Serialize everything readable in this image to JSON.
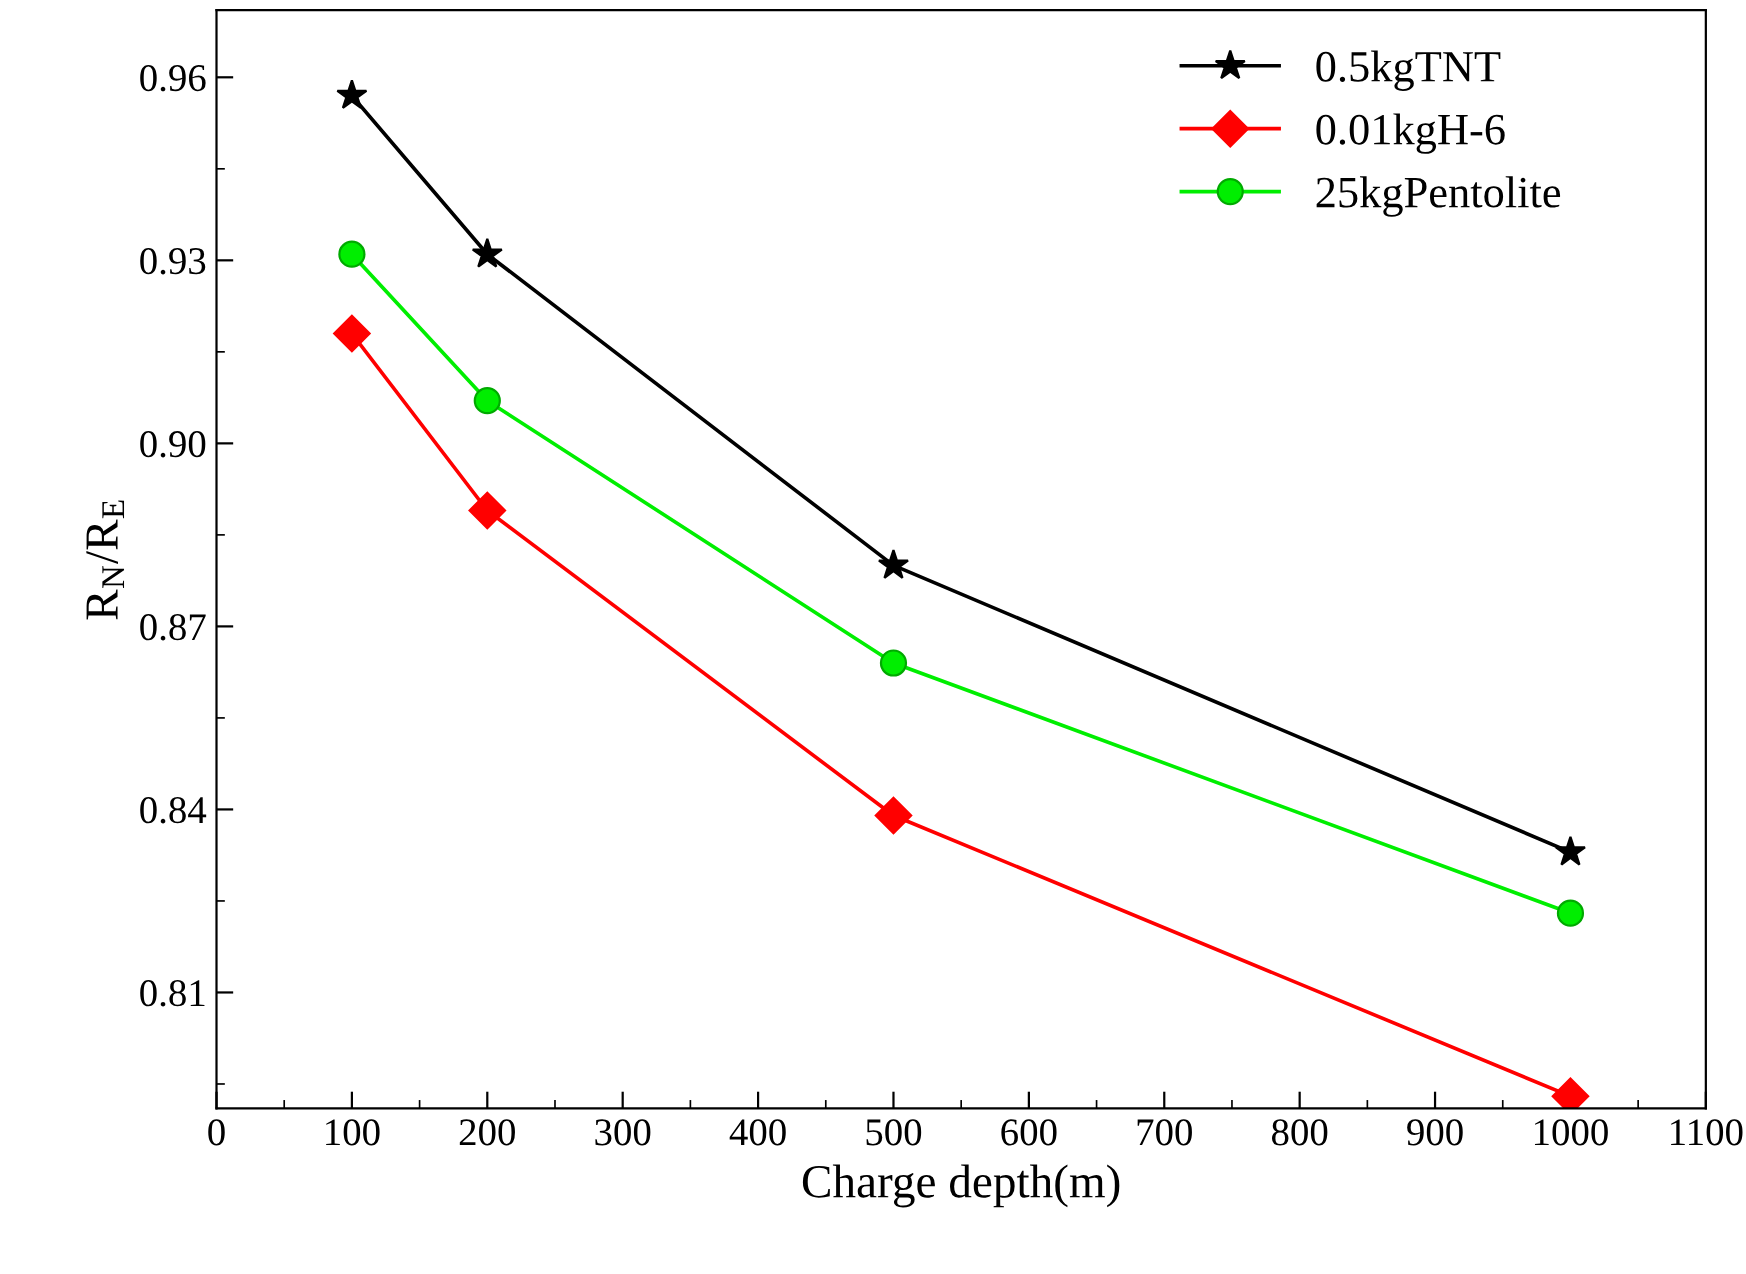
{
  "chart_data": {
    "type": "line",
    "xlabel": "Charge depth(m)",
    "ylabel": "R$_{N}$/R$_{E}$",
    "x": [
      100,
      200,
      500,
      1000
    ],
    "series": [
      {
        "name": "0.5kgTNT",
        "color": "#000000",
        "marker": "star",
        "values": [
          0.957,
          0.931,
          0.88,
          0.833
        ]
      },
      {
        "name": "0.01kgH-6",
        "color": "#ff0000",
        "marker": "diamond",
        "values": [
          0.918,
          0.889,
          0.839,
          0.793
        ]
      },
      {
        "name": "25kgPentolite",
        "color": "#00ee00",
        "marker": "circle",
        "values": [
          0.931,
          0.907,
          0.864,
          0.823
        ]
      }
    ],
    "xlim": [
      0,
      1100
    ],
    "xticks": [
      0,
      100,
      200,
      300,
      400,
      500,
      600,
      700,
      800,
      900,
      1000,
      1100
    ],
    "ylim": [
      0.791,
      0.971
    ],
    "yticks": [
      0.81,
      0.84,
      0.87,
      {
        "value": 0.9,
        "label": "0.90"
      },
      0.93,
      0.96
    ],
    "grid": false,
    "legend": "top right",
    "line_style": "solid"
  }
}
